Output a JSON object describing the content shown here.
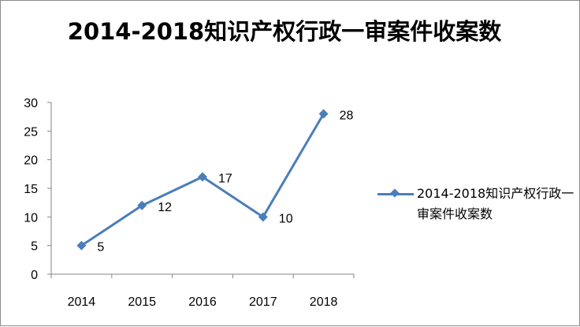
{
  "chart_data": {
    "type": "line",
    "title": "2014-2018知识产权行政一审案件收案数",
    "categories": [
      "2014",
      "2015",
      "2016",
      "2017",
      "2018"
    ],
    "series": [
      {
        "name": "2014-2018知识产权行政一审案件收案数",
        "values": [
          5,
          12,
          17,
          10,
          28
        ]
      }
    ],
    "data_labels": [
      "5",
      "12",
      "17",
      "10",
      "28"
    ],
    "yticks": [
      "0",
      "5",
      "10",
      "15",
      "20",
      "25",
      "30"
    ],
    "ylim": [
      0,
      30
    ],
    "legend_position": "right",
    "grid": false,
    "series_color": "#4a7ebb"
  }
}
